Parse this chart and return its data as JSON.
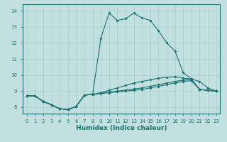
{
  "xlabel": "Humidex (Indice chaleur)",
  "bg_color": "#c2e0e0",
  "grid_color": "#a8cccc",
  "line_color": "#1a7070",
  "xlim": [
    -0.5,
    23.5
  ],
  "ylim": [
    7.6,
    14.4
  ],
  "xticks": [
    0,
    1,
    2,
    3,
    4,
    5,
    6,
    7,
    8,
    9,
    10,
    11,
    12,
    13,
    14,
    15,
    16,
    17,
    18,
    19,
    20,
    21,
    22,
    23
  ],
  "yticks": [
    8,
    9,
    10,
    11,
    12,
    13,
    14
  ],
  "line1_x": [
    0,
    1,
    2,
    3,
    4,
    5,
    6,
    7,
    8,
    9,
    10,
    11,
    12,
    13,
    14,
    15,
    16,
    17,
    18,
    19,
    20,
    21,
    22,
    23
  ],
  "line1_y": [
    8.7,
    8.7,
    8.35,
    8.15,
    7.9,
    7.85,
    8.05,
    8.75,
    8.8,
    8.85,
    8.9,
    8.95,
    9.0,
    9.05,
    9.1,
    9.2,
    9.3,
    9.4,
    9.5,
    9.6,
    9.65,
    9.1,
    9.05,
    9.0
  ],
  "line2_x": [
    0,
    1,
    2,
    3,
    4,
    5,
    6,
    7,
    8,
    9,
    10,
    11,
    12,
    13,
    14,
    15,
    16,
    17,
    18,
    19,
    20,
    21,
    22,
    23
  ],
  "line2_y": [
    8.7,
    8.7,
    8.35,
    8.15,
    7.9,
    7.85,
    8.05,
    8.75,
    8.8,
    8.9,
    9.05,
    9.2,
    9.35,
    9.5,
    9.6,
    9.7,
    9.8,
    9.85,
    9.9,
    9.8,
    9.75,
    9.1,
    9.05,
    9.0
  ],
  "line3_x": [
    0,
    1,
    2,
    3,
    4,
    5,
    6,
    7,
    8,
    9,
    10,
    11,
    12,
    13,
    14,
    15,
    16,
    17,
    18,
    19,
    20,
    21,
    22,
    23
  ],
  "line3_y": [
    8.7,
    8.7,
    8.35,
    8.15,
    7.9,
    7.85,
    8.05,
    8.75,
    8.8,
    12.3,
    13.85,
    13.4,
    13.5,
    13.85,
    13.55,
    13.4,
    12.75,
    12.0,
    11.5,
    10.15,
    9.75,
    9.6,
    9.2,
    9.0
  ],
  "line4_x": [
    0,
    1,
    2,
    3,
    4,
    5,
    6,
    7,
    8,
    9,
    10,
    11,
    12,
    13,
    14,
    15,
    16,
    17,
    18,
    19,
    20,
    21,
    22,
    23
  ],
  "line4_y": [
    8.7,
    8.7,
    8.35,
    8.15,
    7.9,
    7.85,
    8.05,
    8.75,
    8.8,
    8.87,
    8.93,
    9.0,
    9.07,
    9.13,
    9.2,
    9.3,
    9.4,
    9.5,
    9.6,
    9.68,
    9.72,
    9.1,
    9.05,
    9.0
  ]
}
